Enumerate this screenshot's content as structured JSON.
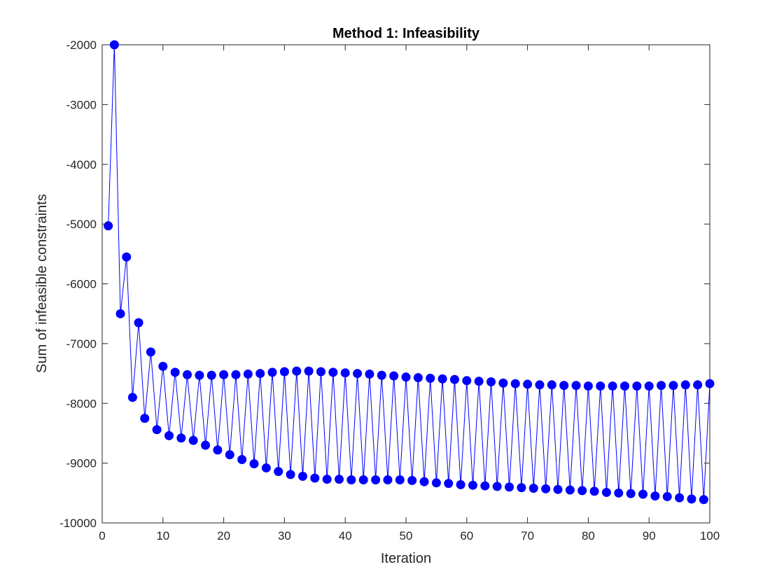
{
  "chart_data": {
    "type": "line",
    "title": "Method 1: Infeasibility",
    "xlabel": "Iteration",
    "ylabel": "Sum of infeasible constraints",
    "xlim": [
      0,
      100
    ],
    "ylim": [
      -10000,
      -2000
    ],
    "xticks": [
      0,
      10,
      20,
      30,
      40,
      50,
      60,
      70,
      80,
      90,
      100
    ],
    "yticks": [
      -10000,
      -9000,
      -8000,
      -7000,
      -6000,
      -5000,
      -4000,
      -3000,
      -2000
    ],
    "xtick_labels": [
      "0",
      "10",
      "20",
      "30",
      "40",
      "50",
      "60",
      "70",
      "80",
      "90",
      "100"
    ],
    "ytick_labels": [
      "-10000",
      "-9000",
      "-8000",
      "-7000",
      "-6000",
      "-5000",
      "-4000",
      "-3000",
      "-2000"
    ],
    "grid": false,
    "marker": "filled-circle",
    "color": "#0000ff",
    "x": [
      1,
      2,
      3,
      4,
      5,
      6,
      7,
      8,
      9,
      10,
      11,
      12,
      13,
      14,
      15,
      16,
      17,
      18,
      19,
      20,
      21,
      22,
      23,
      24,
      25,
      26,
      27,
      28,
      29,
      30,
      31,
      32,
      33,
      34,
      35,
      36,
      37,
      38,
      39,
      40,
      41,
      42,
      43,
      44,
      45,
      46,
      47,
      48,
      49,
      50,
      51,
      52,
      53,
      54,
      55,
      56,
      57,
      58,
      59,
      60,
      61,
      62,
      63,
      64,
      65,
      66,
      67,
      68,
      69,
      70,
      71,
      72,
      73,
      74,
      75,
      76,
      77,
      78,
      79,
      80,
      81,
      82,
      83,
      84,
      85,
      86,
      87,
      88,
      89,
      90,
      91,
      92,
      93,
      94,
      95,
      96,
      97,
      98,
      99,
      100
    ],
    "y": [
      -5030,
      -2000,
      -6500,
      -5550,
      -7900,
      -6650,
      -8250,
      -7140,
      -8440,
      -7380,
      -8540,
      -7480,
      -8580,
      -7520,
      -8620,
      -7530,
      -8700,
      -7530,
      -8780,
      -7520,
      -8860,
      -7520,
      -8940,
      -7510,
      -9010,
      -7500,
      -9080,
      -7480,
      -9140,
      -7470,
      -9190,
      -7460,
      -9220,
      -7460,
      -9250,
      -7470,
      -9270,
      -7480,
      -9270,
      -7490,
      -9280,
      -7500,
      -9280,
      -7510,
      -9280,
      -7530,
      -9280,
      -7540,
      -9280,
      -7560,
      -9290,
      -7570,
      -9310,
      -7580,
      -9330,
      -7590,
      -9340,
      -7600,
      -9360,
      -7620,
      -9370,
      -7630,
      -9380,
      -7640,
      -9390,
      -7660,
      -9400,
      -7670,
      -9410,
      -7680,
      -9420,
      -7690,
      -9430,
      -7690,
      -9440,
      -7700,
      -9450,
      -7700,
      -9460,
      -7710,
      -9470,
      -7710,
      -9490,
      -7710,
      -9500,
      -7710,
      -9510,
      -7710,
      -9520,
      -7710,
      -9550,
      -7700,
      -9560,
      -7700,
      -9580,
      -7690,
      -9600,
      -7690,
      -9610,
      -7670
    ]
  }
}
